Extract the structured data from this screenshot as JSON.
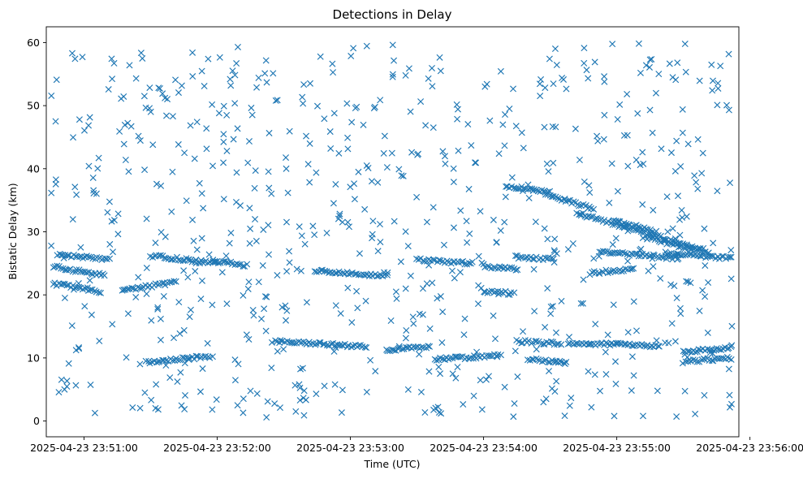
{
  "chart_data": {
    "type": "scatter",
    "title": "Detections in Delay",
    "xlabel": "Time (UTC)",
    "ylabel": "Bistatic Delay (km)",
    "marker": "x",
    "color": "#1f77b4",
    "xlim_seconds": [
      -17,
      295
    ],
    "ylim": [
      -2.5,
      62.5
    ],
    "x_ticks": [
      {
        "t": 0,
        "label": "2025-04-23 23:51:00"
      },
      {
        "t": 60,
        "label": "2025-04-23 23:52:00"
      },
      {
        "t": 120,
        "label": "2025-04-23 23:53:00"
      },
      {
        "t": 180,
        "label": "2025-04-23 23:54:00"
      },
      {
        "t": 240,
        "label": "2025-04-23 23:55:00"
      },
      {
        "t": 300,
        "label": "2025-04-23 23:56:00"
      }
    ],
    "y_ticks": [
      {
        "v": 0,
        "label": "0"
      },
      {
        "v": 10,
        "label": "10"
      },
      {
        "v": 20,
        "label": "20"
      },
      {
        "v": 30,
        "label": "30"
      },
      {
        "v": 40,
        "label": "40"
      },
      {
        "v": 50,
        "label": "50"
      },
      {
        "v": 60,
        "label": "60"
      }
    ],
    "x_units": "seconds after 2025-04-23 23:51:00 UTC",
    "tracks": [
      {
        "t0": -14,
        "t1": 8,
        "y0": 21.8,
        "y1": 20.5
      },
      {
        "t0": -14,
        "t1": 10,
        "y0": 24.5,
        "y1": 23.0
      },
      {
        "t0": -12,
        "t1": 12,
        "y0": 26.5,
        "y1": 25.5
      },
      {
        "t0": 17,
        "t1": 42,
        "y0": 20.8,
        "y1": 22.0
      },
      {
        "t0": 30,
        "t1": 60,
        "y0": 26.2,
        "y1": 25.0
      },
      {
        "t0": 58,
        "t1": 74,
        "y0": 25.4,
        "y1": 24.6
      },
      {
        "t0": 28,
        "t1": 58,
        "y0": 9.3,
        "y1": 10.3
      },
      {
        "t0": 104,
        "t1": 136,
        "y0": 23.8,
        "y1": 23.0
      },
      {
        "t0": 86,
        "t1": 128,
        "y0": 12.6,
        "y1": 11.8
      },
      {
        "t0": 136,
        "t1": 156,
        "y0": 11.2,
        "y1": 11.8
      },
      {
        "t0": 158,
        "t1": 188,
        "y0": 9.8,
        "y1": 10.4
      },
      {
        "t0": 150,
        "t1": 176,
        "y0": 25.6,
        "y1": 25.0
      },
      {
        "t0": 180,
        "t1": 196,
        "y0": 24.6,
        "y1": 24.0
      },
      {
        "t0": 180,
        "t1": 194,
        "y0": 20.6,
        "y1": 20.2
      },
      {
        "t0": 190,
        "t1": 210,
        "y0": 37.2,
        "y1": 36.4
      },
      {
        "t0": 195,
        "t1": 212,
        "y0": 26.0,
        "y1": 25.6
      },
      {
        "t0": 195,
        "t1": 215,
        "y0": 12.6,
        "y1": 12.3
      },
      {
        "t0": 200,
        "t1": 218,
        "y0": 9.8,
        "y1": 9.2
      },
      {
        "t0": 208,
        "t1": 230,
        "y0": 36.0,
        "y1": 33.6
      },
      {
        "t0": 218,
        "t1": 260,
        "y0": 12.4,
        "y1": 11.9
      },
      {
        "t0": 222,
        "t1": 280,
        "y0": 33.0,
        "y1": 27.0
      },
      {
        "t0": 232,
        "t1": 268,
        "y0": 26.8,
        "y1": 25.8
      },
      {
        "t0": 228,
        "t1": 248,
        "y0": 23.4,
        "y1": 24.2
      },
      {
        "t0": 238,
        "t1": 258,
        "y0": 31.8,
        "y1": 30.0
      },
      {
        "t0": 262,
        "t1": 292,
        "y0": 26.6,
        "y1": 25.8
      },
      {
        "t0": 270,
        "t1": 292,
        "y0": 9.4,
        "y1": 10.0
      },
      {
        "t0": 270,
        "t1": 292,
        "y0": 11.0,
        "y1": 11.6
      },
      {
        "t0": 252,
        "t1": 282,
        "y0": 29.2,
        "y1": 26.6
      }
    ],
    "background_points": {
      "count": 720,
      "t_range": [
        -15,
        292
      ],
      "y_range": [
        0.5,
        60
      ],
      "seed": 73
    }
  }
}
